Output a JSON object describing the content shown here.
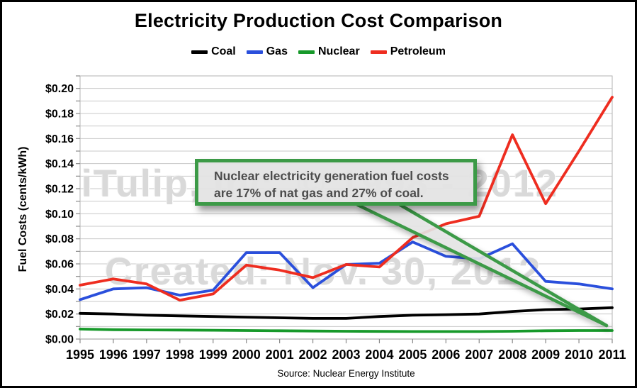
{
  "header": {
    "title": "Electricity Production Cost Comparison"
  },
  "legend": [
    {
      "label": "Coal",
      "color": "#000000"
    },
    {
      "label": "Gas",
      "color": "#2a4fdc"
    },
    {
      "label": "Nuclear",
      "color": "#17992a"
    },
    {
      "label": "Petroleum",
      "color": "#ee2d20"
    }
  ],
  "annotation": {
    "line1": "Nuclear electricity generation fuel costs",
    "line2": "are 17% of nat gas and 27% of coal.",
    "border_color": "#3c9a47"
  },
  "watermark": {
    "line1": "iTulip, Inc. © 1998 - 2012",
    "line2": "Created: Nov. 30, 2012"
  },
  "footer": {
    "source": "Source: Nuclear Energy Institute"
  },
  "chart_data": {
    "type": "line",
    "title": "Electricity Production Cost Comparison",
    "xlabel": "",
    "ylabel": "Fuel Costs (cents/kWh)",
    "x": [
      1995,
      1996,
      1997,
      1998,
      1999,
      2000,
      2001,
      2002,
      2003,
      2004,
      2005,
      2006,
      2007,
      2008,
      2009,
      2010,
      2011
    ],
    "ylim": [
      0,
      0.21
    ],
    "ytick_minor_step": 0.01,
    "ytick_label_step": 0.02,
    "ytick_label_max": 0.2,
    "ytick_prefix": "$",
    "grid": "horizontal",
    "legend_position": "top",
    "series": [
      {
        "name": "Coal",
        "color": "#000000",
        "values": [
          0.0205,
          0.02,
          0.019,
          0.0185,
          0.018,
          0.0175,
          0.017,
          0.0165,
          0.0165,
          0.018,
          0.019,
          0.0195,
          0.02,
          0.022,
          0.0235,
          0.024,
          0.025
        ]
      },
      {
        "name": "Gas",
        "color": "#2a4fdc",
        "values": [
          0.0315,
          0.04,
          0.041,
          0.035,
          0.039,
          0.069,
          0.069,
          0.041,
          0.0595,
          0.0605,
          0.0775,
          0.066,
          0.064,
          0.076,
          0.046,
          0.044,
          0.04
        ]
      },
      {
        "name": "Nuclear",
        "color": "#17992a",
        "values": [
          0.008,
          0.0075,
          0.0073,
          0.0072,
          0.007,
          0.0068,
          0.0066,
          0.0064,
          0.0062,
          0.0061,
          0.006,
          0.006,
          0.006,
          0.0062,
          0.0066,
          0.0068,
          0.0068
        ]
      },
      {
        "name": "Petroleum",
        "color": "#ee2d20",
        "values": [
          0.043,
          0.048,
          0.044,
          0.031,
          0.036,
          0.059,
          0.055,
          0.049,
          0.0595,
          0.0575,
          0.081,
          0.092,
          0.098,
          0.163,
          0.108,
          0.15,
          0.193
        ]
      }
    ]
  }
}
